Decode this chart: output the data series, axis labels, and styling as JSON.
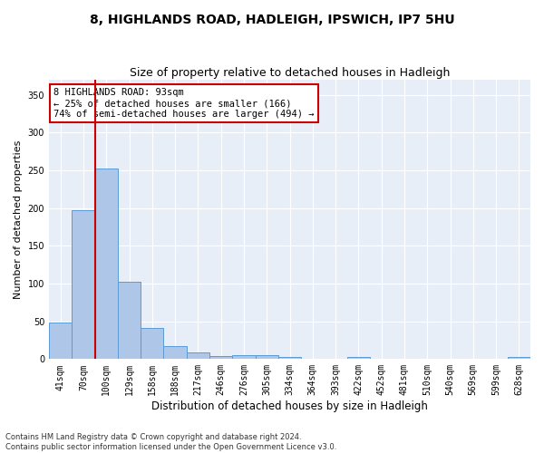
{
  "title1": "8, HIGHLANDS ROAD, HADLEIGH, IPSWICH, IP7 5HU",
  "title2": "Size of property relative to detached houses in Hadleigh",
  "xlabel": "Distribution of detached houses by size in Hadleigh",
  "ylabel": "Number of detached properties",
  "footnote": "Contains HM Land Registry data © Crown copyright and database right 2024.\nContains public sector information licensed under the Open Government Licence v3.0.",
  "bin_labels": [
    "41sqm",
    "70sqm",
    "100sqm",
    "129sqm",
    "158sqm",
    "188sqm",
    "217sqm",
    "246sqm",
    "276sqm",
    "305sqm",
    "334sqm",
    "364sqm",
    "393sqm",
    "422sqm",
    "452sqm",
    "481sqm",
    "510sqm",
    "540sqm",
    "569sqm",
    "599sqm",
    "628sqm"
  ],
  "bar_values": [
    49,
    197,
    252,
    102,
    41,
    17,
    9,
    4,
    5,
    5,
    3,
    0,
    0,
    3,
    0,
    0,
    0,
    0,
    0,
    0,
    3
  ],
  "bar_color": "#aec6e8",
  "bar_edge_color": "#5b9bd5",
  "vline_color": "#cc0000",
  "annotation_text": "8 HIGHLANDS ROAD: 93sqm\n← 25% of detached houses are smaller (166)\n74% of semi-detached houses are larger (494) →",
  "annotation_box_color": "#ffffff",
  "annotation_box_edge_color": "#cc0000",
  "ylim": [
    0,
    370
  ],
  "background_color": "#e8eef7",
  "grid_color": "#ffffff",
  "title1_fontsize": 10,
  "title2_fontsize": 9,
  "xlabel_fontsize": 8.5,
  "ylabel_fontsize": 8,
  "tick_fontsize": 7,
  "annotation_fontsize": 7.5,
  "footnote_fontsize": 6
}
